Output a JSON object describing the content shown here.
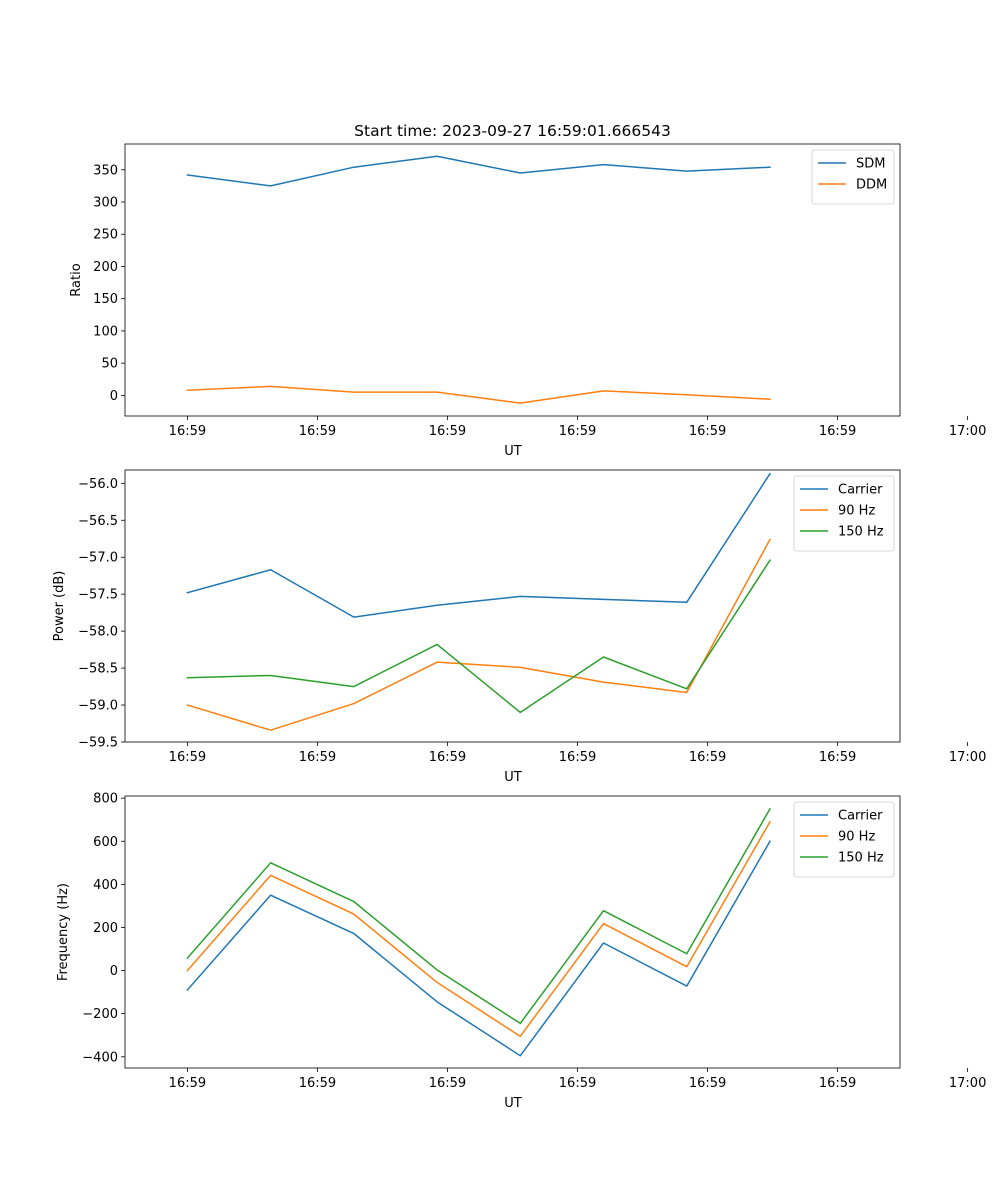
{
  "figure": {
    "title": "Start time: 2023-09-27 16:59:01.666543",
    "background": "#ffffff"
  },
  "chart_data": [
    {
      "type": "line",
      "title": "Start time: 2023-09-27 16:59:01.666543",
      "xlabel": "UT",
      "ylabel": "Ratio",
      "xlim": [
        -0.48,
        5.48
      ],
      "x": [
        0,
        0.64,
        1.28,
        1.92,
        2.56,
        3.2,
        3.84,
        4.48
      ],
      "xticks": [
        {
          "value": 0,
          "label": "16:59"
        },
        {
          "value": 1,
          "label": "16:59"
        },
        {
          "value": 2,
          "label": "16:59"
        },
        {
          "value": 3,
          "label": "16:59"
        },
        {
          "value": 4,
          "label": "16:59"
        },
        {
          "value": 5,
          "label": "16:59"
        },
        {
          "value": 6,
          "label": "17:00"
        }
      ],
      "ylim": [
        -32,
        390
      ],
      "yticks": [
        {
          "value": 0,
          "label": "0"
        },
        {
          "value": 50,
          "label": "50"
        },
        {
          "value": 100,
          "label": "100"
        },
        {
          "value": 150,
          "label": "150"
        },
        {
          "value": 200,
          "label": "200"
        },
        {
          "value": 250,
          "label": "250"
        },
        {
          "value": 300,
          "label": "300"
        },
        {
          "value": 350,
          "label": "350"
        }
      ],
      "legend": "top-right",
      "series": [
        {
          "name": "SDM",
          "color": "#1f77b4",
          "values": [
            342,
            325,
            354,
            371,
            345,
            358,
            348,
            354
          ]
        },
        {
          "name": "DDM",
          "color": "#ff7f0e",
          "values": [
            8,
            14,
            5,
            5,
            -12,
            7,
            1,
            -6
          ]
        }
      ]
    },
    {
      "type": "line",
      "xlabel": "UT",
      "ylabel": "Power (dB)",
      "xlim": [
        -0.48,
        5.48
      ],
      "x": [
        0,
        0.64,
        1.28,
        1.92,
        2.56,
        3.2,
        3.84,
        4.48
      ],
      "xticks": [
        {
          "value": 0,
          "label": "16:59"
        },
        {
          "value": 1,
          "label": "16:59"
        },
        {
          "value": 2,
          "label": "16:59"
        },
        {
          "value": 3,
          "label": "16:59"
        },
        {
          "value": 4,
          "label": "16:59"
        },
        {
          "value": 5,
          "label": "16:59"
        },
        {
          "value": 6,
          "label": "17:00"
        }
      ],
      "ylim": [
        -59.5,
        -55.82
      ],
      "yticks": [
        {
          "value": -59.5,
          "label": "−59.5"
        },
        {
          "value": -59.0,
          "label": "−59.0"
        },
        {
          "value": -58.5,
          "label": "−58.5"
        },
        {
          "value": -58.0,
          "label": "−58.0"
        },
        {
          "value": -57.5,
          "label": "−57.5"
        },
        {
          "value": -57.0,
          "label": "−57.0"
        },
        {
          "value": -56.5,
          "label": "−56.5"
        },
        {
          "value": -56.0,
          "label": "−56.0"
        }
      ],
      "legend": "top-right",
      "series": [
        {
          "name": "Carrier",
          "color": "#1f77b4",
          "values": [
            -57.48,
            -57.17,
            -57.81,
            -57.65,
            -57.53,
            -57.57,
            -57.61,
            -55.87
          ]
        },
        {
          "name": "90 Hz",
          "color": "#ff7f0e",
          "values": [
            -59.0,
            -59.34,
            -58.98,
            -58.42,
            -58.49,
            -58.69,
            -58.83,
            -56.76
          ]
        },
        {
          "name": "150 Hz",
          "color": "#2ca02c",
          "values": [
            -58.63,
            -58.6,
            -58.75,
            -58.18,
            -59.1,
            -58.35,
            -58.78,
            -57.04
          ]
        }
      ]
    },
    {
      "type": "line",
      "xlabel": "UT",
      "ylabel": "Frequency (Hz)",
      "xlim": [
        -0.48,
        5.48
      ],
      "x": [
        0,
        0.64,
        1.28,
        1.92,
        2.56,
        3.2,
        3.84,
        4.48
      ],
      "xticks": [
        {
          "value": 0,
          "label": "16:59"
        },
        {
          "value": 1,
          "label": "16:59"
        },
        {
          "value": 2,
          "label": "16:59"
        },
        {
          "value": 3,
          "label": "16:59"
        },
        {
          "value": 4,
          "label": "16:59"
        },
        {
          "value": 5,
          "label": "16:59"
        },
        {
          "value": 6,
          "label": "17:00"
        }
      ],
      "ylim": [
        -452,
        810
      ],
      "yticks": [
        {
          "value": -400,
          "label": "−400"
        },
        {
          "value": -200,
          "label": "−200"
        },
        {
          "value": 0,
          "label": "0"
        },
        {
          "value": 200,
          "label": "200"
        },
        {
          "value": 400,
          "label": "400"
        },
        {
          "value": 600,
          "label": "600"
        },
        {
          "value": 800,
          "label": "800"
        }
      ],
      "legend": "top-right",
      "series": [
        {
          "name": "Carrier",
          "color": "#1f77b4",
          "values": [
            -90,
            350,
            172,
            -145,
            -395,
            128,
            -72,
            600
          ]
        },
        {
          "name": "90 Hz",
          "color": "#ff7f0e",
          "values": [
            0,
            442,
            262,
            -55,
            -305,
            218,
            18,
            690
          ]
        },
        {
          "name": "150 Hz",
          "color": "#2ca02c",
          "values": [
            58,
            500,
            320,
            3,
            -245,
            278,
            78,
            750
          ]
        }
      ]
    }
  ]
}
